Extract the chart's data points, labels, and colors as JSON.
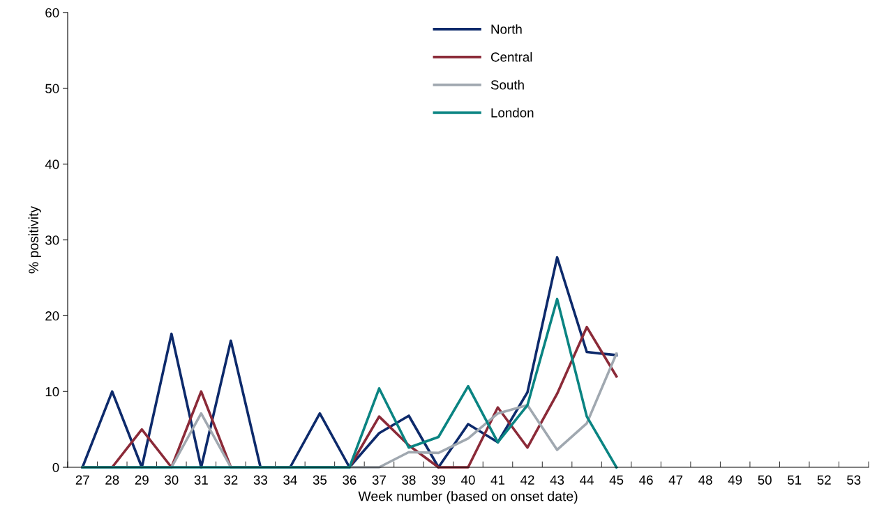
{
  "chart_data": {
    "type": "line",
    "xlabel": "Week number (based on onset date)",
    "ylabel": "% positivity",
    "categories": [
      "27",
      "28",
      "29",
      "30",
      "31",
      "32",
      "33",
      "34",
      "35",
      "36",
      "37",
      "38",
      "39",
      "40",
      "41",
      "42",
      "43",
      "44",
      "45",
      "46",
      "47",
      "48",
      "49",
      "50",
      "51",
      "52",
      "53"
    ],
    "ylim": [
      0,
      60
    ],
    "yticks": [
      0,
      10,
      20,
      30,
      40,
      50,
      60
    ],
    "grid": false,
    "legend": "top",
    "marker": "none",
    "line_style": "solid",
    "series": [
      {
        "name": "North",
        "color": "#0d2a6b",
        "values": [
          0,
          10,
          0,
          17.6,
          0,
          16.7,
          0,
          0,
          7.1,
          0,
          4.5,
          6.8,
          0,
          5.7,
          3.3,
          9.9,
          27.7,
          15.2,
          14.8,
          null,
          null,
          null,
          null,
          null,
          null,
          null,
          null
        ]
      },
      {
        "name": "Central",
        "color": "#8b2a38",
        "values": [
          0,
          0,
          5,
          0,
          10,
          0,
          0,
          0,
          0,
          0,
          6.7,
          2.9,
          0,
          0,
          7.9,
          2.6,
          9.7,
          18.5,
          12,
          null,
          null,
          null,
          null,
          null,
          null,
          null,
          null
        ]
      },
      {
        "name": "South",
        "color": "#a0a8b0",
        "values": [
          0,
          0,
          0,
          0,
          7.1,
          0,
          0,
          0,
          0,
          0,
          0,
          2.0,
          1.9,
          3.8,
          7.1,
          8.2,
          2.3,
          5.8,
          15,
          null,
          null,
          null,
          null,
          null,
          null,
          null,
          null
        ]
      },
      {
        "name": "London",
        "color": "#0a8482",
        "values": [
          0,
          0,
          0,
          0,
          0,
          0,
          0,
          0,
          0,
          0,
          10.4,
          2.6,
          4.0,
          10.7,
          3.3,
          8.2,
          22.2,
          6.7,
          0,
          null,
          null,
          null,
          null,
          null,
          null,
          null,
          null
        ]
      }
    ]
  }
}
